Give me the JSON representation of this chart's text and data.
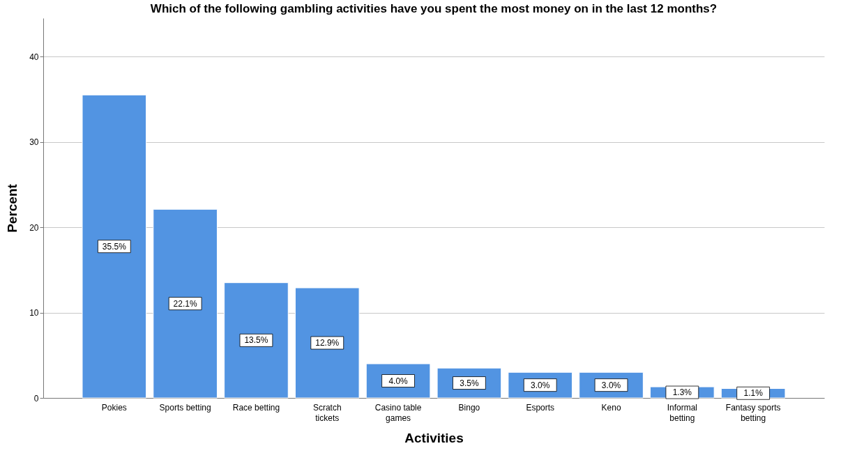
{
  "chart_data": {
    "type": "bar",
    "title": "Which of the following gambling activities have you spent the most money on in the last 12 months?",
    "xlabel": "Activities",
    "ylabel": "Percent",
    "categories": [
      "Pokies",
      "Sports betting",
      "Race betting",
      "Scratch tickets",
      "Casino table games",
      "Bingo",
      "Esports",
      "Keno",
      "Informal betting",
      "Fantasy sports betting"
    ],
    "values": [
      35.5,
      22.1,
      13.5,
      12.9,
      4.0,
      3.5,
      3.0,
      3.0,
      1.3,
      1.1
    ],
    "value_labels": [
      "35.5%",
      "22.1%",
      "13.5%",
      "12.9%",
      "4.0%",
      "3.5%",
      "3.0%",
      "3.0%",
      "1.3%",
      "1.1%"
    ],
    "color": "#5294e2",
    "ylim": [
      0,
      44.5
    ],
    "yticks": [
      0,
      10,
      20,
      30,
      40
    ],
    "grid": "y"
  }
}
